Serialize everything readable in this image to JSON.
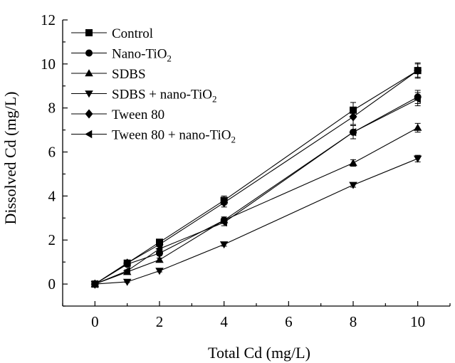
{
  "chart_data": {
    "type": "line",
    "xlabel": "Total Cd (mg/L)",
    "ylabel": "Dissolved Cd (mg/L)",
    "xlim": [
      -1,
      11
    ],
    "ylim": [
      -1,
      12
    ],
    "xticks": [
      0,
      2,
      4,
      6,
      8,
      10
    ],
    "yticks": [
      0,
      2,
      4,
      6,
      8,
      10,
      12
    ],
    "x": [
      0,
      1,
      2,
      4,
      8,
      10
    ],
    "legend_position": "top-left",
    "grid": false,
    "series": [
      {
        "name": "Control",
        "name_sub": "",
        "name_suffix": "",
        "marker": "square",
        "values": [
          0,
          0.95,
          1.9,
          3.8,
          7.9,
          9.7
        ],
        "errors": [
          0,
          0.05,
          0.1,
          0.2,
          0.35,
          0.35
        ]
      },
      {
        "name": "Nano-TiO",
        "name_sub": "2",
        "name_suffix": "",
        "marker": "circle",
        "values": [
          0,
          0.9,
          1.4,
          2.9,
          6.9,
          8.5
        ],
        "errors": [
          0,
          0.05,
          0.1,
          0.15,
          0.3,
          0.3
        ]
      },
      {
        "name": "SDBS",
        "name_sub": "",
        "name_suffix": "",
        "marker": "triangle-up",
        "values": [
          0,
          0.55,
          1.1,
          2.9,
          5.5,
          7.1
        ],
        "errors": [
          0,
          0.05,
          0.08,
          0.1,
          0.15,
          0.2
        ]
      },
      {
        "name": "SDBS + nano-TiO",
        "name_sub": "2",
        "name_suffix": "",
        "marker": "triangle-down",
        "values": [
          0,
          0.1,
          0.6,
          1.8,
          4.5,
          5.7
        ],
        "errors": [
          0,
          0.03,
          0.05,
          0.08,
          0.1,
          0.15
        ]
      },
      {
        "name": "Tween 80",
        "name_sub": "",
        "name_suffix": "",
        "marker": "diamond",
        "values": [
          0,
          0.95,
          1.8,
          3.7,
          7.6,
          9.7
        ],
        "errors": [
          0,
          0.05,
          0.1,
          0.2,
          0.35,
          0.3
        ]
      },
      {
        "name": "Tween 80 + nano-TiO",
        "name_sub": "2",
        "name_suffix": "",
        "marker": "triangle-left",
        "values": [
          0,
          0.6,
          1.6,
          2.8,
          6.9,
          8.4
        ],
        "errors": [
          0,
          0.05,
          0.1,
          0.15,
          0.3,
          0.3
        ]
      }
    ]
  }
}
